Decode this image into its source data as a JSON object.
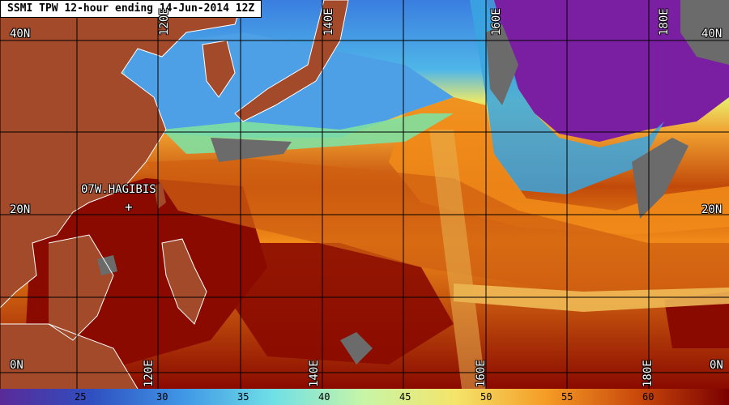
{
  "title": "SSMI TPW 12-hour ending 14-Jun-2014 12Z",
  "lat_labels": {
    "n40_left": "40N",
    "n40_right": "40N",
    "n20_left": "20N",
    "n20_right": "20N",
    "n0_left": "0N",
    "n0_right": "0N"
  },
  "lon_labels": [
    "120E",
    "140E",
    "160E",
    "180E"
  ],
  "storm": {
    "name": "07W.HAGIBIS",
    "marker": "+"
  },
  "colorbar": {
    "ticks": [
      "25",
      "30",
      "35",
      "40",
      "45",
      "50",
      "55",
      "60"
    ],
    "colors": [
      "#5a2a99",
      "#2f4fc0",
      "#3f96e6",
      "#6fe0e6",
      "#c8f5a6",
      "#f5e46a",
      "#f59b25",
      "#c9480b",
      "#7a0000"
    ]
  },
  "colors": {
    "land": "#a24a2a",
    "coast": "#ffffff",
    "grid": "#000000",
    "missing": "#6b6b6b",
    "very_dry": "#7b1fa2",
    "dry": "#2c6bd6",
    "moist": "#f2d66a",
    "wet": "#f08a18",
    "very_wet": "#8a0a00"
  }
}
